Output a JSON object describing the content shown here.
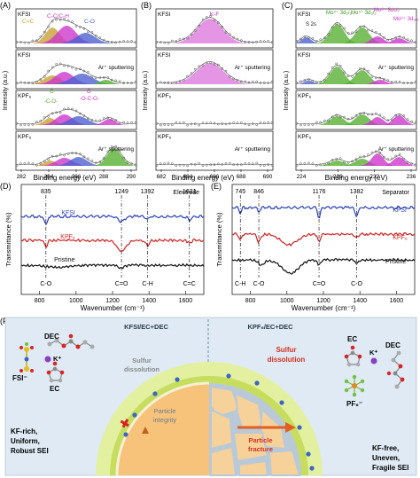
{
  "panelA": {
    "letter": "(A)",
    "ylabel": "Intensity (a.u.)",
    "xlabel": "Binding energy (eV)",
    "xticks": [
      "282",
      "284",
      "286",
      "288",
      "290"
    ],
    "rows": [
      {
        "left": "KFSI",
        "right": ""
      },
      {
        "left": "KFSI",
        "right": "Ar⁺ sputtering"
      },
      {
        "left": "KPF₆",
        "right": ""
      },
      {
        "left": "KPF₆",
        "right": "Ar⁺ sputtering"
      }
    ],
    "labels": {
      "cc": "C=C",
      "cch": "C-C/C-H",
      "co": "C-O",
      "o_co": "O",
      "c_o": "-C-O-",
      "o_oco": "O",
      "oco": "-O-C-O-"
    },
    "colors": {
      "cc": "#c8a032",
      "cch": "#cc33cc",
      "co": "#4a5fd0",
      "carbonate": "#55b030"
    }
  },
  "panelB": {
    "letter": "(B)",
    "ylabel": "Intensity (a.u.)",
    "xlabel": "Binding energy (eV)",
    "xticks": [
      "682",
      "684",
      "686",
      "688",
      "690"
    ],
    "rows": [
      {
        "left": "KFSI",
        "right": "",
        "peak": "K-F"
      },
      {
        "left": "KFSI",
        "right": "Ar⁺ sputtering"
      },
      {
        "left": "KPF₆",
        "right": ""
      },
      {
        "left": "KPF₆",
        "right": "Ar⁺ sputtering"
      }
    ],
    "colors": {
      "kf": "#dd77dd"
    }
  },
  "panelC": {
    "letter": "(C)",
    "ylabel": "Intensity (a.u.)",
    "xlabel": "Binding energy (eV)",
    "xticks": [
      "224",
      "228",
      "232",
      "236"
    ],
    "rows": [
      {
        "left": "KFSI",
        "right": ""
      },
      {
        "left": "KFSI",
        "right": "Ar⁺ sputtering"
      },
      {
        "left": "KPF₆",
        "right": ""
      },
      {
        "left": "KPF₆",
        "right": "Ar⁺ sputtering"
      }
    ],
    "labels": {
      "s2s": "S 2s",
      "mo4": "Mo⁴⁺ 3d₅/₂",
      "mo4b": "Mo⁴⁺ 3d₃/₂",
      "mo6": "Mo⁶⁺ 3d₅/₂",
      "mo6b": "Mo⁶⁺ 3d₃/₂"
    },
    "colors": {
      "mo4": "#55b030",
      "mo6": "#cc33cc",
      "s2s": "#4a5fd0"
    }
  },
  "panelD": {
    "letter": "(D)",
    "corner": "Electrode",
    "ylabel": "Transmittance (%)",
    "xlabel": "Wavenumber (cm⁻¹)",
    "xticks": [
      "800",
      "1000",
      "1200",
      "1400",
      "1600"
    ],
    "series": [
      {
        "name": "KFSI",
        "color": "#2a3fb8"
      },
      {
        "name": "KPF₆",
        "color": "#d02020"
      },
      {
        "name": "Pristine",
        "color": "#111111"
      }
    ],
    "peaks": [
      {
        "value": "835",
        "bond": "C-O"
      },
      {
        "value": "1249",
        "bond": "C=O"
      },
      {
        "value": "1392",
        "bond": "C-H"
      },
      {
        "value": "1621",
        "bond": "C=C"
      }
    ]
  },
  "panelE": {
    "letter": "(E)",
    "corner": "Separator",
    "ylabel": "Transmittance (%)",
    "xlabel": "Wavenumber (cm⁻¹)",
    "xticks": [
      "800",
      "1000",
      "1200",
      "1400",
      "1600"
    ],
    "series": [
      {
        "name": "KFSI",
        "color": "#2a3fb8"
      },
      {
        "name": "KPF₆",
        "color": "#d02020"
      },
      {
        "name": "Pristine",
        "color": "#111111"
      }
    ],
    "peaks": [
      {
        "value": "745",
        "bond": "C-H"
      },
      {
        "value": "846",
        "bond": "C-O"
      },
      {
        "value": "1176",
        "bond": "C=O"
      },
      {
        "value": "1382",
        "bond": "C-O"
      }
    ]
  },
  "panelF": {
    "letter": "(F)",
    "left_title": "KFSI/EC+DEC",
    "right_title": "KPF₆/EC+DEC",
    "left_molecules": {
      "dec": "DEC",
      "k": "K⁺",
      "fsi": "FSI⁻",
      "ec": "EC"
    },
    "right_molecules": {
      "ec": "EC",
      "k": "K⁺",
      "dec": "DEC",
      "pf6": "PF₆⁻"
    },
    "left_process": [
      "Sulfur",
      "dissolution"
    ],
    "right_process": [
      "Sulfur",
      "dissolution"
    ],
    "left_state": [
      "Particle",
      "integrity"
    ],
    "right_state": [
      "Particle",
      "fracture"
    ],
    "left_sei": [
      "KF-rich,",
      "Uniform,",
      "Robust SEI"
    ],
    "right_sei": [
      "KF-free,",
      "Uneven,",
      "Fragile SEI"
    ]
  }
}
